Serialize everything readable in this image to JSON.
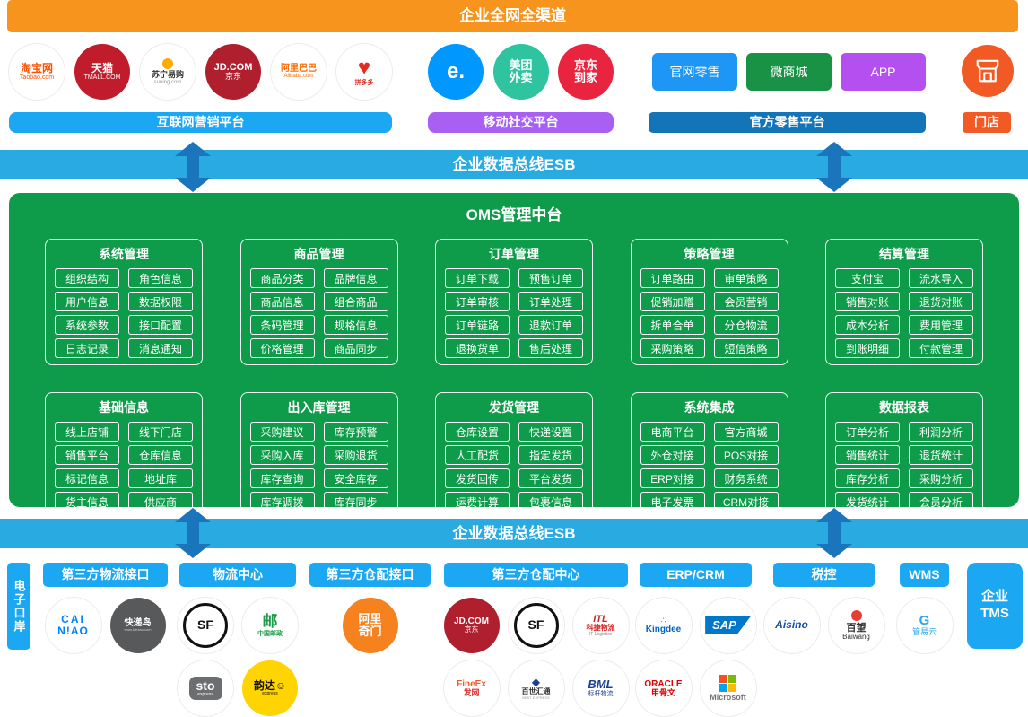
{
  "banner": {
    "title": "企业全网全渠道"
  },
  "esb": {
    "label": "企业数据总线ESB"
  },
  "colors": {
    "banner_orange": "#F7941E",
    "esb_blue": "#29ABE2",
    "arrow_blue": "#1B75BC",
    "oms_green": "#0E9C4A",
    "label_blue": "#1BA7F2",
    "social_purple": "#A960F2",
    "official_dark_blue": "#1474B8",
    "store_orange": "#F15A24"
  },
  "channel_groups": {
    "internet": {
      "label": "互联网营销平台",
      "logos": [
        {
          "name": "taobao-logo",
          "brand": "淘宝网 Taobao.com",
          "bg": "#FFFFFF",
          "lines": [
            {
              "t": "淘宝网",
              "c": "#FF5000",
              "s": 12,
              "b": 1
            },
            {
              "t": "Taobao.com",
              "c": "#FF5000",
              "s": 7
            }
          ]
        },
        {
          "name": "tmall-logo",
          "brand": "天猫 TMALL.COM",
          "bg": "#C01C2B",
          "lines": [
            {
              "t": "天猫",
              "c": "#FFFFFF",
              "s": 12,
              "b": 1
            },
            {
              "t": "TMALL.COM",
              "c": "#FFFFFF",
              "s": 7
            }
          ]
        },
        {
          "name": "suning-logo",
          "brand": "苏宁易购 suning.com",
          "bg": "#FFFFFF",
          "icon": "#FFAA00",
          "lines": [
            {
              "t": "苏宁易购",
              "c": "#333333",
              "s": 9,
              "b": 1
            },
            {
              "t": "suning.com",
              "c": "#999999",
              "s": 6
            }
          ]
        },
        {
          "name": "jd-logo",
          "brand": "JD.COM 京东",
          "bg": "#B01F2E",
          "lines": [
            {
              "t": "JD.COM",
              "c": "#FFFFFF",
              "s": 11,
              "b": 1
            },
            {
              "t": "京东",
              "c": "#FFFFFF",
              "s": 9
            }
          ]
        },
        {
          "name": "alibaba-logo",
          "brand": "阿里巴巴 Alibaba.com",
          "bg": "#FFFFFF",
          "lines": [
            {
              "t": "阿里巴巴",
              "c": "#FF6A00",
              "s": 10,
              "b": 1
            },
            {
              "t": "Alibaba.com",
              "c": "#FF6A00",
              "s": 6
            }
          ]
        },
        {
          "name": "pinduoduo-logo",
          "brand": "拼多多",
          "bg": "#FFFFFF",
          "lines": [
            {
              "t": "♥",
              "c": "#E02E24",
              "s": 24
            },
            {
              "t": "拼多多",
              "c": "#E02E24",
              "s": 7,
              "b": 1
            }
          ]
        }
      ]
    },
    "social": {
      "label": "移动社交平台",
      "logos": [
        {
          "name": "eleme-logo",
          "brand": "饿了么",
          "bg": "#0097FF",
          "lines": [
            {
              "t": "e.",
              "c": "#FFFFFF",
              "s": 24,
              "b": 1
            }
          ]
        },
        {
          "name": "meituan-waimai-logo",
          "brand": "美团外卖",
          "bg": "#2EC4A0",
          "lines": [
            {
              "t": "美团",
              "c": "#FFFFFF",
              "s": 13,
              "b": 1
            },
            {
              "t": "外卖",
              "c": "#FFFFFF",
              "s": 13,
              "b": 1
            }
          ]
        },
        {
          "name": "jd-daojia-logo",
          "brand": "京东到家",
          "bg": "#E8243F",
          "lines": [
            {
              "t": "京东",
              "c": "#FFFFFF",
              "s": 13,
              "b": 1
            },
            {
              "t": "到家",
              "c": "#FFFFFF",
              "s": 13,
              "b": 1
            }
          ]
        }
      ]
    },
    "official": {
      "label": "官方零售平台",
      "buttons": [
        {
          "name": "official-site-retail-button",
          "label": "官网零售",
          "color": "#1E96F5"
        },
        {
          "name": "wechat-mall-button",
          "label": "微商城",
          "color": "#1A9245"
        },
        {
          "name": "app-button",
          "label": "APP",
          "color": "#B44FF0"
        }
      ]
    },
    "store": {
      "label": "门店",
      "logo": {
        "name": "store-front-icon",
        "brand": "门店",
        "bg": "#F15A24",
        "icon": "store"
      }
    }
  },
  "oms": {
    "title": "OMS管理中台",
    "modules": [
      {
        "title": "系统管理",
        "items": [
          "组织结构",
          "角色信息",
          "用户信息",
          "数据权限",
          "系统参数",
          "接口配置",
          "日志记录",
          "消息通知"
        ]
      },
      {
        "title": "商品管理",
        "items": [
          "商品分类",
          "品牌信息",
          "商品信息",
          "组合商品",
          "条码管理",
          "规格信息",
          "价格管理",
          "商品同步"
        ]
      },
      {
        "title": "订单管理",
        "items": [
          "订单下载",
          "预售订单",
          "订单审核",
          "订单处理",
          "订单链路",
          "退款订单",
          "退换货单",
          "售后处理"
        ]
      },
      {
        "title": "策略管理",
        "items": [
          "订单路由",
          "审单策略",
          "促销加赠",
          "会员营销",
          "拆单合单",
          "分仓物流",
          "采购策略",
          "短信策略"
        ]
      },
      {
        "title": "结算管理",
        "items": [
          "支付宝",
          "流水导入",
          "销售对账",
          "退货对账",
          "成本分析",
          "费用管理",
          "到账明细",
          "付款管理"
        ]
      },
      {
        "title": "基础信息",
        "items": [
          "线上店铺",
          "线下门店",
          "销售平台",
          "仓库信息",
          "标记信息",
          "地址库",
          "货主信息",
          "供应商"
        ]
      },
      {
        "title": "出入库管理",
        "items": [
          "采购建议",
          "库存预警",
          "采购入库",
          "采购退货",
          "库存查询",
          "安全库存",
          "库存调拨",
          "库存同步"
        ]
      },
      {
        "title": "发货管理",
        "items": [
          "仓库设置",
          "快递设置",
          "人工配货",
          "指定发货",
          "发货回传",
          "平台发货",
          "运费计算",
          "包裹信息"
        ]
      },
      {
        "title": "系统集成",
        "items": [
          "电商平台",
          "官方商城",
          "外仓对接",
          "POS对接",
          "ERP对接",
          "财务系统",
          "电子发票",
          "CRM对接"
        ]
      },
      {
        "title": "数据报表",
        "items": [
          "订单分析",
          "利润分析",
          "销售统计",
          "退货统计",
          "库存分析",
          "采购分析",
          "发货统计",
          "会员分析"
        ]
      }
    ]
  },
  "bottom": {
    "left_rail": {
      "label": "电子口岸"
    },
    "right_rail": {
      "label": "企业TMS",
      "line1": "企业",
      "line2": "TMS"
    },
    "groups": [
      {
        "label": "第三方物流接口",
        "row1": [
          {
            "name": "cainiao-logo",
            "brand": "菜鸟 CAINIAO",
            "bg": "#FFFFFF",
            "lines": [
              {
                "t": "CAI",
                "c": "#0082FF",
                "s": 12,
                "b": 1,
                "ls": 2
              },
              {
                "t": "N!AO",
                "c": "#0082FF",
                "s": 12,
                "b": 1,
                "ls": 1
              }
            ]
          },
          {
            "name": "kuaidiniao-logo",
            "brand": "快递鸟",
            "bg": "#58595B",
            "lines": [
              {
                "t": "快递鸟",
                "c": "#FFFFFF",
                "s": 10,
                "b": 1
              },
              {
                "t": "www.kdniao.com",
                "c": "#CCCCCC",
                "s": 4
              }
            ]
          }
        ],
        "row2": []
      },
      {
        "label": "物流中心",
        "row1": [
          {
            "name": "sf-express-logo",
            "brand": "顺丰速运 SF",
            "bg": "#FFFFFF",
            "ring": "#111111",
            "lines": [
              {
                "t": "SF",
                "c": "#111111",
                "s": 14,
                "b": 1
              }
            ]
          },
          {
            "name": "china-post-logo",
            "brand": "中国邮政",
            "bg": "#FFFFFF",
            "lines": [
              {
                "t": "邮",
                "c": "#1C9C48",
                "s": 17,
                "b": 1
              },
              {
                "t": "中国邮政",
                "c": "#1C9C48",
                "s": 7,
                "b": 1
              }
            ]
          }
        ],
        "row2": [
          {
            "name": "sto-express-logo",
            "brand": "申通快递 sto express",
            "bg": "#FFFFFF",
            "badge": {
              "bg": "#6D6E71",
              "shape": "round"
            },
            "lines": [
              {
                "t": "sto",
                "c": "#FFFFFF",
                "s": 14,
                "b": 1
              },
              {
                "t": "express",
                "c": "#FFFFFF",
                "s": 5
              }
            ]
          },
          {
            "name": "yunda-express-logo",
            "brand": "韵达快递",
            "bg": "#FFD400",
            "lines": [
              {
                "t": "韵达☺",
                "c": "#111111",
                "s": 12,
                "b": 1
              },
              {
                "t": "express",
                "c": "#111111",
                "s": 5
              }
            ]
          }
        ]
      },
      {
        "label": "第三方仓配接口",
        "row1": [
          {
            "name": "ali-qimen-logo",
            "brand": "阿里奇门",
            "bg": "#F5821F",
            "lines": [
              {
                "t": "阿里",
                "c": "#FFFFFF",
                "s": 13,
                "b": 1
              },
              {
                "t": "奇门",
                "c": "#FFFFFF",
                "s": 13,
                "b": 1
              }
            ]
          }
        ],
        "row2": []
      },
      {
        "label": "第三方仓配中心",
        "row1": [
          {
            "name": "jd-logistics-logo",
            "brand": "JD.COM 京东",
            "bg": "#B01F2E",
            "lines": [
              {
                "t": "JD.COM",
                "c": "#FFFFFF",
                "s": 10,
                "b": 1
              },
              {
                "t": "京东",
                "c": "#FFFFFF",
                "s": 8
              }
            ]
          },
          {
            "name": "sf-express-logo",
            "brand": "顺丰速运 SF",
            "bg": "#FFFFFF",
            "ring": "#111111",
            "lines": [
              {
                "t": "SF",
                "c": "#111111",
                "s": 14,
                "b": 1
              }
            ]
          },
          {
            "name": "kejie-logistics-logo",
            "brand": "科捷物流 IT Logistics",
            "bg": "#FFFFFF",
            "lines": [
              {
                "t": "ITL",
                "c": "#D42222",
                "s": 11,
                "b": 1,
                "i": 1
              },
              {
                "t": "科捷物流",
                "c": "#D42222",
                "s": 8,
                "b": 1
              },
              {
                "t": "IT Logistics",
                "c": "#888888",
                "s": 5
              }
            ]
          }
        ],
        "row2": [
          {
            "name": "fineex-logo",
            "brand": "FineEx发网",
            "bg": "#FFFFFF",
            "lines": [
              {
                "t": "FineEx",
                "c": "#F05A28",
                "s": 10,
                "b": 1
              },
              {
                "t": "发网",
                "c": "#E03030",
                "s": 9,
                "b": 1
              }
            ]
          },
          {
            "name": "best-express-logo",
            "brand": "百世汇通 BEST EXPRESS",
            "bg": "#FFFFFF",
            "lines": [
              {
                "t": "◆",
                "c": "#1B3F8F",
                "s": 12
              },
              {
                "t": "百世汇通",
                "c": "#333333",
                "s": 8,
                "b": 1
              },
              {
                "t": "BEST EXPRESS",
                "c": "#999999",
                "s": 4
              }
            ]
          },
          {
            "name": "bml-logistics-logo",
            "brand": "BML 标杆物流",
            "bg": "#FFFFFF",
            "lines": [
              {
                "t": "BML",
                "c": "#1B3F8F",
                "s": 13,
                "b": 1,
                "i": 1
              },
              {
                "t": "标杆物流",
                "c": "#1B3F8F",
                "s": 7
              }
            ]
          }
        ]
      },
      {
        "label": "ERP/CRM",
        "row1": [
          {
            "name": "kingdee-logo",
            "brand": "金蝶 Kingdee",
            "bg": "#FFFFFF",
            "lines": [
              {
                "t": "∴",
                "c": "#8B5CF6",
                "s": 9
              },
              {
                "t": "Kingdee",
                "c": "#0061C1",
                "s": 10,
                "b": 1
              }
            ]
          },
          {
            "name": "sap-logo",
            "brand": "SAP",
            "bg": "#FFFFFF",
            "badge": {
              "bg": "#0077C8",
              "shape": "skew"
            },
            "lines": [
              {
                "t": "SAP",
                "c": "#FFFFFF",
                "s": 13,
                "b": 1,
                "i": 1
              }
            ]
          }
        ],
        "row2": [
          {
            "name": "oracle-logo",
            "brand": "ORACLE 甲骨文",
            "bg": "#FFFFFF",
            "lines": [
              {
                "t": "ORACLE",
                "c": "#E00000",
                "s": 10,
                "b": 1
              },
              {
                "t": "甲骨文",
                "c": "#E00000",
                "s": 9,
                "b": 1
              }
            ]
          },
          {
            "name": "microsoft-logo",
            "brand": "Microsoft",
            "bg": "#FFFFFF",
            "squares": [
              "#F25022",
              "#7FBA00",
              "#00A4EF",
              "#FFB900"
            ],
            "lines": [
              {
                "t": "Microsoft",
                "c": "#737373",
                "s": 9,
                "b": 1
              }
            ]
          }
        ]
      },
      {
        "label": "税控",
        "row1": [
          {
            "name": "aisino-logo",
            "brand": "Aisino 航天信息",
            "bg": "#FFFFFF",
            "lines": [
              {
                "t": "Aisino",
                "c": "#1A4FA0",
                "s": 12,
                "b": 1,
                "i": 1
              }
            ]
          },
          {
            "name": "baiwang-logo",
            "brand": "百望 Baiwang",
            "bg": "#FFFFFF",
            "icon": "#E63E30",
            "lines": [
              {
                "t": "百望",
                "c": "#333333",
                "s": 11,
                "b": 1
              },
              {
                "t": "Baiwang",
                "c": "#333333",
                "s": 8
              }
            ]
          }
        ],
        "row2": []
      },
      {
        "label": "WMS",
        "row1": [
          {
            "name": "guanyiyun-logo",
            "brand": "管易云",
            "bg": "#FFFFFF",
            "lines": [
              {
                "t": "G",
                "c": "#2BA7E8",
                "s": 15,
                "b": 1
              },
              {
                "t": "管易云",
                "c": "#2BA7E8",
                "s": 9
              }
            ]
          }
        ],
        "row2": []
      }
    ]
  }
}
